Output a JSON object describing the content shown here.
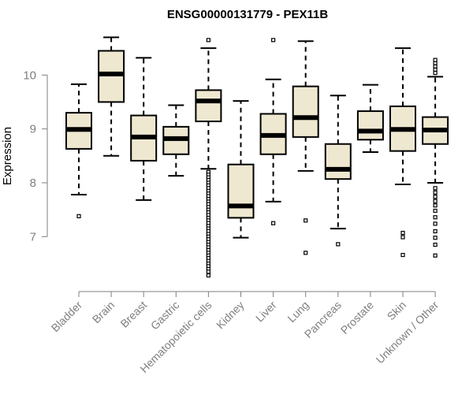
{
  "chart_data": {
    "type": "boxplot",
    "title": "ENSG00000131779 - PEX11B",
    "xlabel": "",
    "ylabel": "Expression",
    "ylim": [
      6.2,
      10.75
    ],
    "yticks": [
      7,
      8,
      9,
      10
    ],
    "categories": [
      "Bladder",
      "Brain",
      "Breast",
      "Gastric",
      "Hematopoietic cells",
      "Kidney",
      "Liver",
      "Lung",
      "Pancreas",
      "Prostate",
      "Skin",
      "Unknown / Other"
    ],
    "boxes": [
      {
        "name": "Bladder",
        "min": 7.78,
        "q1": 8.63,
        "median": 8.99,
        "q3": 9.3,
        "max": 9.83,
        "outliers": [
          7.38
        ]
      },
      {
        "name": "Brain",
        "min": 8.5,
        "q1": 9.5,
        "median": 10.02,
        "q3": 10.45,
        "max": 10.7,
        "outliers": []
      },
      {
        "name": "Breast",
        "min": 7.68,
        "q1": 8.41,
        "median": 8.85,
        "q3": 9.25,
        "max": 10.32,
        "outliers": []
      },
      {
        "name": "Gastric",
        "min": 8.13,
        "q1": 8.53,
        "median": 8.82,
        "q3": 9.04,
        "max": 9.44,
        "outliers": []
      },
      {
        "name": "Hematopoietic cells",
        "min": 8.26,
        "q1": 9.14,
        "median": 9.52,
        "q3": 9.72,
        "max": 10.5,
        "outliers": [
          10.65,
          8.2,
          8.15,
          8.1,
          8.05,
          8.0,
          7.95,
          7.9,
          7.85,
          7.8,
          7.75,
          7.7,
          7.65,
          7.6,
          7.55,
          7.5,
          7.45,
          7.4,
          7.35,
          7.3,
          7.25,
          7.2,
          7.15,
          7.1,
          7.05,
          7.0,
          6.95,
          6.9,
          6.85,
          6.8,
          6.75,
          6.7,
          6.65,
          6.6,
          6.55,
          6.5,
          6.45,
          6.4,
          6.35,
          6.28
        ]
      },
      {
        "name": "Kidney",
        "min": 6.98,
        "q1": 7.35,
        "median": 7.57,
        "q3": 8.34,
        "max": 9.52,
        "outliers": []
      },
      {
        "name": "Liver",
        "min": 7.65,
        "q1": 8.53,
        "median": 8.88,
        "q3": 9.28,
        "max": 9.92,
        "outliers": [
          10.65,
          7.25
        ]
      },
      {
        "name": "Lung",
        "min": 8.22,
        "q1": 8.85,
        "median": 9.21,
        "q3": 9.79,
        "max": 10.63,
        "outliers": [
          7.3,
          6.7
        ]
      },
      {
        "name": "Pancreas",
        "min": 7.15,
        "q1": 8.07,
        "median": 8.25,
        "q3": 8.72,
        "max": 9.62,
        "outliers": [
          6.86
        ]
      },
      {
        "name": "Prostate",
        "min": 8.57,
        "q1": 8.8,
        "median": 8.96,
        "q3": 9.33,
        "max": 9.82,
        "outliers": []
      },
      {
        "name": "Skin",
        "min": 7.97,
        "q1": 8.59,
        "median": 8.99,
        "q3": 9.42,
        "max": 10.5,
        "outliers": [
          7.07,
          6.99,
          6.66
        ]
      },
      {
        "name": "Unknown / Other",
        "min": 8.0,
        "q1": 8.72,
        "median": 8.98,
        "q3": 9.22,
        "max": 9.97,
        "outliers": [
          10.28,
          10.22,
          10.16,
          10.1,
          10.04,
          7.9,
          7.82,
          7.74,
          7.66,
          7.58,
          7.48,
          7.36,
          7.24,
          7.1,
          6.98,
          6.85,
          6.65
        ]
      }
    ]
  },
  "colors": {
    "box_fill": "#efe8d1",
    "median": "#000000",
    "axis": "#7f7f7f",
    "tick_text": "#7f7f7f"
  }
}
